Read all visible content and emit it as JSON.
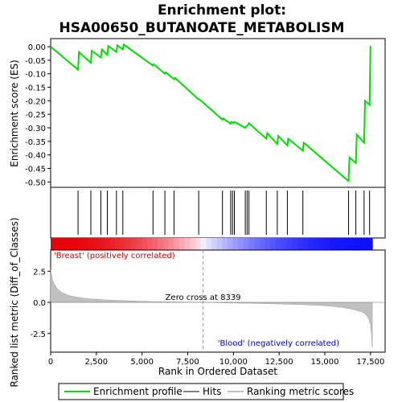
{
  "chart_data": {
    "type": "line",
    "title": "Enrichment plot: HSA00650_BUTANOATE_METABOLISM",
    "title_lines": [
      "Enrichment plot:",
      "HSA00650_BUTANOATE_METABOLISM"
    ],
    "top_panel": {
      "ylabel": "Enrichment score (ES)",
      "ylim": [
        -0.52,
        0.03
      ],
      "yticks": [
        0.0,
        -0.05,
        -0.1,
        -0.15,
        -0.2,
        -0.25,
        -0.3,
        -0.35,
        -0.4,
        -0.45,
        -0.5
      ],
      "ytick_labels": [
        "0.00",
        "-0.05",
        "-0.10",
        "-0.15",
        "-0.20",
        "-0.25",
        "-0.30",
        "-0.35",
        "-0.40",
        "-0.45",
        "-0.50"
      ],
      "series": [
        {
          "name": "Enrichment profile",
          "color": "#00dd00",
          "x": [
            0,
            1500,
            1550,
            2200,
            2250,
            2750,
            2800,
            3100,
            3150,
            3600,
            3650,
            3950,
            4000,
            5600,
            5650,
            6250,
            6300,
            6750,
            6800,
            8100,
            8150,
            9400,
            9450,
            9850,
            9900,
            10000,
            10050,
            10650,
            10700,
            10800,
            10850,
            11800,
            11850,
            12400,
            12450,
            12950,
            13000,
            13800,
            13850,
            16300,
            16350,
            16700,
            16750,
            17150,
            17200,
            17450,
            17500
          ],
          "y": [
            0.0,
            -0.085,
            -0.02,
            -0.06,
            -0.015,
            -0.04,
            -0.01,
            -0.03,
            0.003,
            -0.02,
            0.005,
            -0.01,
            0.008,
            -0.07,
            -0.065,
            -0.1,
            -0.095,
            -0.12,
            -0.115,
            -0.195,
            -0.195,
            -0.27,
            -0.265,
            -0.285,
            -0.278,
            -0.283,
            -0.278,
            -0.3,
            -0.295,
            -0.29,
            -0.283,
            -0.34,
            -0.32,
            -0.36,
            -0.33,
            -0.365,
            -0.34,
            -0.385,
            -0.355,
            -0.497,
            -0.41,
            -0.43,
            -0.325,
            -0.355,
            -0.2,
            -0.215,
            0.003
          ]
        }
      ]
    },
    "hits_panel": {
      "hit_positions": [
        1500,
        2200,
        2750,
        3100,
        3600,
        3950,
        5600,
        6250,
        6750,
        8100,
        9400,
        9850,
        9950,
        10050,
        10650,
        10750,
        10850,
        11800,
        12400,
        12950,
        13800,
        16300,
        16700,
        17150,
        17450
      ],
      "legend_label": "Hits"
    },
    "bottom_panel": {
      "ylabel": "Ranked list metric (Diff_of_Classes)",
      "xlabel": "Rank in Ordered Dataset",
      "xlim": [
        0,
        18300
      ],
      "ylim": [
        -4.0,
        4.2
      ],
      "xticks": [
        0,
        2500,
        5000,
        7500,
        10000,
        12500,
        15000,
        17500
      ],
      "xtick_labels": [
        "0",
        "2,500",
        "5,000",
        "7,500",
        "10,000",
        "12,500",
        "15,000",
        "17,500"
      ],
      "yticks": [
        2.5,
        0.0,
        -2.5
      ],
      "ytick_labels": [
        "2.5",
        "0.0",
        "-2.5"
      ],
      "metric_x": [
        0,
        100,
        300,
        600,
        1000,
        1500,
        2000,
        3000,
        4000,
        5000,
        6000,
        7000,
        8339,
        9000,
        10000,
        11000,
        12000,
        13000,
        14000,
        15000,
        15500,
        16000,
        16500,
        17000,
        17200,
        17400,
        17500,
        17550,
        17600
      ],
      "metric_y": [
        2.6,
        1.8,
        1.2,
        0.8,
        0.55,
        0.4,
        0.3,
        0.2,
        0.14,
        0.09,
        0.05,
        0.03,
        0.0,
        -0.02,
        -0.05,
        -0.08,
        -0.11,
        -0.15,
        -0.2,
        -0.27,
        -0.33,
        -0.42,
        -0.55,
        -0.75,
        -0.9,
        -1.3,
        -1.8,
        -2.6,
        -3.6
      ],
      "zero_cross": 8339,
      "zero_cross_label": "Zero cross at 8339",
      "positive_label": "'Breast' (positively correlated)",
      "negative_label": "'Blood' (negatively correlated)",
      "n_genes": 17600
    },
    "legend": {
      "placement": "bottom",
      "items": [
        {
          "label": "Enrichment profile",
          "color": "#00dd00"
        },
        {
          "label": "Hits",
          "color": "#000000"
        },
        {
          "label": "Ranking metric scores",
          "color": "#c0c0c0"
        }
      ]
    },
    "colors": {
      "profile": "#00dd00",
      "positive": "#e8000a",
      "negative": "#1010ff",
      "positive_label": "#cc0000",
      "negative_label": "#0000cc",
      "metric_fill": "#c0c0c0"
    }
  }
}
